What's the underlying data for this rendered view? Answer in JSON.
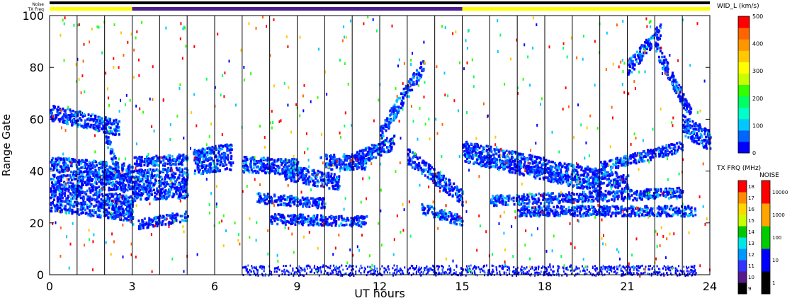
{
  "chart_data": {
    "type": "heatmap",
    "xlabel": "UT hours",
    "ylabel": "Range Gate",
    "xlim": [
      0,
      24
    ],
    "ylim": [
      0,
      100
    ],
    "x_ticks": [
      "0",
      "3",
      "6",
      "9",
      "12",
      "15",
      "18",
      "21",
      "24"
    ],
    "y_ticks": [
      "0",
      "20",
      "40",
      "60",
      "80",
      "100"
    ],
    "top_strips": {
      "noise_label": "Noise",
      "txfreq_label": "TX Freq",
      "segments": [
        {
          "from": 0,
          "to": 3,
          "color": "#ffff00"
        },
        {
          "from": 3,
          "to": 15,
          "color": "#4b1e8c"
        },
        {
          "from": 15,
          "to": 24,
          "color": "#ffff00"
        }
      ]
    },
    "vertical_marker_hours": [
      1,
      2,
      3,
      4,
      5,
      6,
      7,
      8,
      9,
      10,
      11,
      12,
      13,
      14,
      15,
      16,
      17,
      18,
      19,
      20,
      21,
      22,
      23
    ],
    "bands": [
      {
        "t0": 0.0,
        "t1": 3.0,
        "g0": 30,
        "g1": 26,
        "w": 5
      },
      {
        "t0": 0.0,
        "t1": 3.0,
        "g0": 36,
        "g1": 36,
        "w": 3
      },
      {
        "t0": 0.0,
        "t1": 3.0,
        "g0": 43,
        "g1": 40,
        "w": 3
      },
      {
        "t0": 0.0,
        "t1": 2.5,
        "g0": 63,
        "g1": 57,
        "w": 3
      },
      {
        "t0": 2.0,
        "t1": 3.0,
        "g0": 55,
        "g1": 22,
        "w": 3
      },
      {
        "t0": 3.0,
        "t1": 5.0,
        "g0": 35,
        "g1": 36,
        "w": 6
      },
      {
        "t0": 3.0,
        "t1": 5.0,
        "g0": 44,
        "g1": 45,
        "w": 2
      },
      {
        "t0": 3.2,
        "t1": 5.0,
        "g0": 20,
        "g1": 23,
        "w": 2
      },
      {
        "t0": 5.2,
        "t1": 6.6,
        "g0": 44,
        "g1": 46,
        "w": 5
      },
      {
        "t0": 7.0,
        "t1": 9.0,
        "g0": 43,
        "g1": 42,
        "w": 3
      },
      {
        "t0": 8.5,
        "t1": 10.5,
        "g0": 40,
        "g1": 36,
        "w": 3
      },
      {
        "t0": 10.0,
        "t1": 11.5,
        "g0": 44,
        "g1": 44,
        "w": 3
      },
      {
        "t0": 11.0,
        "t1": 12.5,
        "g0": 44,
        "g1": 52,
        "w": 3
      },
      {
        "t0": 12.0,
        "t1": 13.6,
        "g0": 55,
        "g1": 82,
        "w": 3
      },
      {
        "t0": 8.0,
        "t1": 11.5,
        "g0": 22,
        "g1": 21,
        "w": 2
      },
      {
        "t0": 7.5,
        "t1": 10.0,
        "g0": 30,
        "g1": 28,
        "w": 2
      },
      {
        "t0": 13.0,
        "t1": 15.0,
        "g0": 46,
        "g1": 30,
        "w": 3
      },
      {
        "t0": 13.5,
        "t1": 15.0,
        "g0": 26,
        "g1": 21,
        "w": 2
      },
      {
        "t0": 15.0,
        "t1": 21.0,
        "g0": 49,
        "g1": 36,
        "w": 3
      },
      {
        "t0": 15.0,
        "t1": 20.0,
        "g0": 46,
        "g1": 34,
        "w": 2
      },
      {
        "t0": 17.0,
        "t1": 23.5,
        "g0": 25,
        "g1": 25,
        "w": 2
      },
      {
        "t0": 16.0,
        "t1": 23.0,
        "g0": 29,
        "g1": 32,
        "w": 2
      },
      {
        "t0": 20.0,
        "t1": 23.0,
        "g0": 42,
        "g1": 50,
        "w": 2
      },
      {
        "t0": 21.0,
        "t1": 22.2,
        "g0": 80,
        "g1": 95,
        "w": 3
      },
      {
        "t0": 22.0,
        "t1": 23.3,
        "g0": 88,
        "g1": 62,
        "w": 3
      },
      {
        "t0": 23.0,
        "t1": 24.0,
        "g0": 58,
        "g1": 52,
        "w": 4
      }
    ],
    "noise_floor": {
      "t0": 7.0,
      "t1": 23.5,
      "g_max": 4
    },
    "colorbars": [
      {
        "title": "WID_L (km/s)",
        "ticks": [
          "0",
          "100",
          "200",
          "300",
          "400",
          "500"
        ],
        "colors": [
          "#0000ff",
          "#0064ff",
          "#00c8ff",
          "#00ffc8",
          "#00ff64",
          "#32ff00",
          "#c8ff00",
          "#ffff00",
          "#ffc800",
          "#ff9600",
          "#ff6400",
          "#ff0000"
        ]
      },
      {
        "title": "TX FRQ (MHz)",
        "ticks": [
          "9",
          "10",
          "11",
          "12",
          "13",
          "14",
          "15",
          "16",
          "17",
          "18"
        ],
        "colors": [
          "#000000",
          "#551a8b",
          "#3333ff",
          "#0096ff",
          "#00e6e6",
          "#00c800",
          "#c8ff00",
          "#ffd700",
          "#ff8c00",
          "#ff0000"
        ]
      },
      {
        "title": "NOISE",
        "ticks": [
          "1",
          "10",
          "100",
          "1000",
          "10000"
        ],
        "colors": [
          "#000000",
          "#0000ff",
          "#00cc00",
          "#ffa500",
          "#ff0000"
        ]
      }
    ]
  }
}
